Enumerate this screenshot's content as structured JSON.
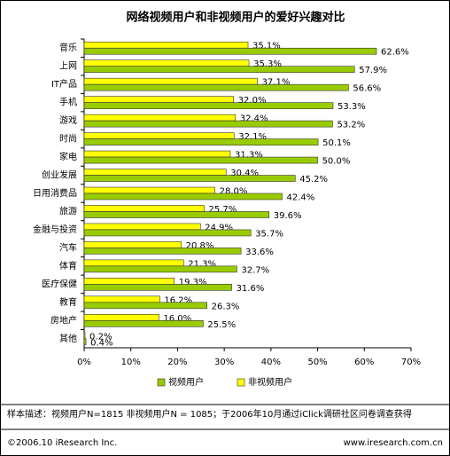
{
  "chart_data": {
    "type": "hbar",
    "title": "网络视频用户和非视频用户的爱好兴趣对比",
    "categories": [
      "音乐",
      "上网",
      "IT产品",
      "手机",
      "游戏",
      "时尚",
      "家电",
      "创业发展",
      "日用消费品",
      "旅游",
      "金融与投资",
      "汽车",
      "体育",
      "医疗保健",
      "教育",
      "房地产",
      "其他"
    ],
    "series": [
      {
        "name": "非视频用户",
        "color": "#ffff00",
        "values": [
          35.1,
          35.3,
          37.1,
          32.0,
          32.4,
          32.1,
          31.3,
          30.4,
          28.0,
          25.7,
          24.9,
          20.8,
          21.3,
          19.3,
          16.2,
          16.0,
          0.2
        ],
        "value_labels": [
          "35.1%",
          "35.3%",
          "37.1%",
          "32.0%",
          "32.4%",
          "32.1%",
          "31.3%",
          "30.4%",
          "28.0%",
          "25.7%",
          "24.9%",
          "20.8%",
          "21.3%",
          "19.3%",
          "16.2%",
          "16.0%",
          "0.2%"
        ]
      },
      {
        "name": "视频用户",
        "color": "#99cc00",
        "values": [
          62.6,
          57.9,
          56.6,
          53.3,
          53.2,
          50.1,
          50.0,
          45.2,
          42.4,
          39.6,
          35.7,
          33.6,
          32.7,
          31.6,
          26.3,
          25.5,
          0.4
        ],
        "value_labels": [
          "62.6%",
          "57.9%",
          "56.6%",
          "53.3%",
          "53.2%",
          "50.1%",
          "50.0%",
          "45.2%",
          "42.4%",
          "39.6%",
          "35.7%",
          "33.6%",
          "32.7%",
          "31.6%",
          "26.3%",
          "25.5%",
          "0.4%"
        ]
      }
    ],
    "xlim": [
      0,
      70
    ],
    "xticks": [
      {
        "value": 0,
        "label": "0%"
      },
      {
        "value": 10,
        "label": "10%"
      },
      {
        "value": 20,
        "label": "20%"
      },
      {
        "value": 30,
        "label": "30%"
      },
      {
        "value": 40,
        "label": "40%"
      },
      {
        "value": 50,
        "label": "50%"
      },
      {
        "value": 60,
        "label": "60%"
      },
      {
        "value": 70,
        "label": "70%"
      }
    ],
    "grid": false,
    "note": "样本描述：视频用户N=1815 非视频用户N = 1085；于2006年10月通过iClick调研社区问卷调查获得"
  },
  "footer": {
    "left": "©2006.10 iResearch Inc.",
    "right": "www.iresearch.com.cn"
  }
}
